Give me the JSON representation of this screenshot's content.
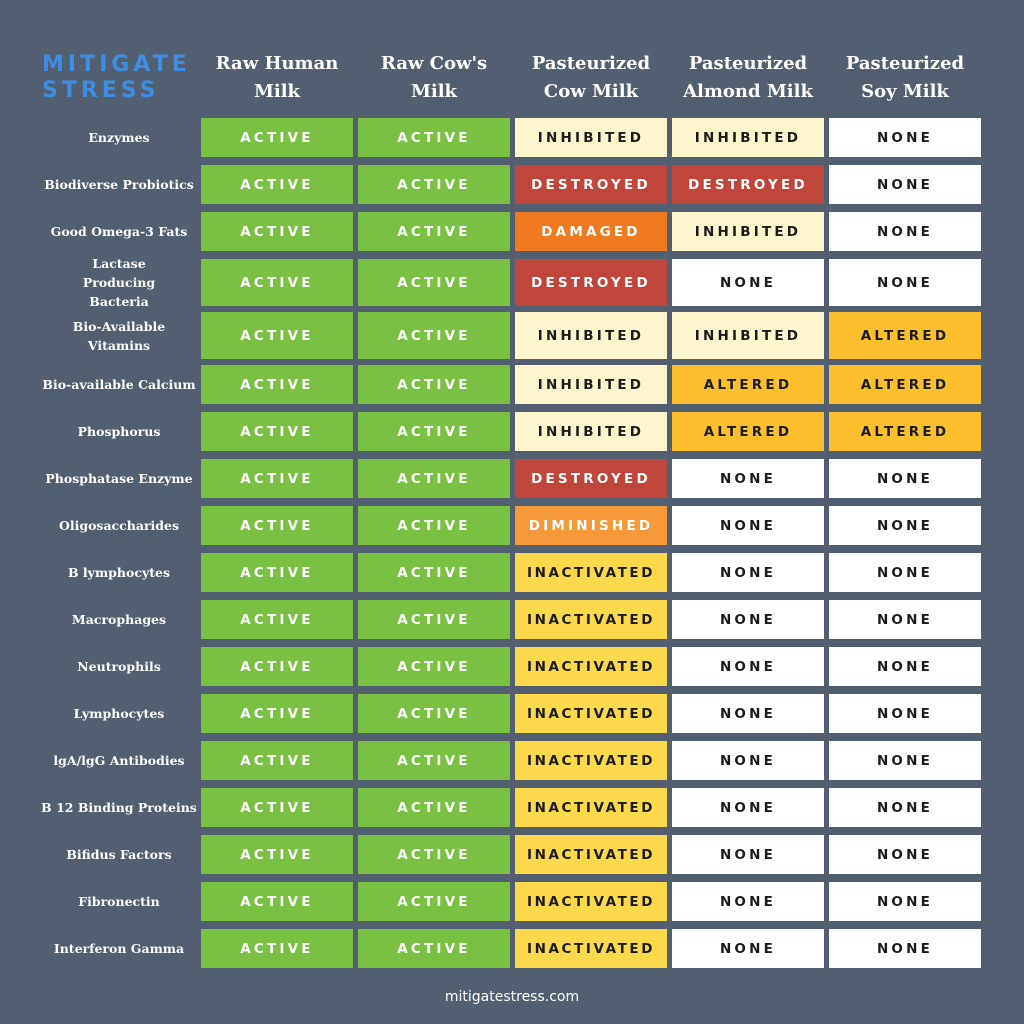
{
  "logo": {
    "line1": "MITIGATE",
    "line2": "STRESS"
  },
  "footer": "mitigatestress.com",
  "colors": {
    "background": "#525f70",
    "ACTIVE": "#7ac143",
    "INHIBITED": "#fdf6cc",
    "NONE": "#ffffff",
    "DESTROYED": "#c0463b",
    "DAMAGED": "#ef7a1f",
    "ALTERED": "#fbbf2e",
    "DIMINISHED": "#f6993a",
    "INACTIVATED": "#fcd84b"
  },
  "chart_data": {
    "type": "table",
    "columns": [
      "Raw Human Milk",
      "Raw Cow's Milk",
      "Pasteurized Cow Milk",
      "Pasteurized Almond Milk",
      "Pasteurized Soy Milk"
    ],
    "column_lines": [
      [
        "Raw Human",
        "Milk"
      ],
      [
        "Raw Cow's",
        "Milk"
      ],
      [
        "Pasteurized",
        "Cow Milk"
      ],
      [
        "Pasteurized",
        "Almond Milk"
      ],
      [
        "Pasteurized",
        "Soy Milk"
      ]
    ],
    "rows": [
      {
        "label": "Enzymes",
        "values": [
          "ACTIVE",
          "ACTIVE",
          "INHIBITED",
          "INHIBITED",
          "NONE"
        ]
      },
      {
        "label": "Biodiverse Probiotics",
        "values": [
          "ACTIVE",
          "ACTIVE",
          "DESTROYED",
          "DESTROYED",
          "NONE"
        ]
      },
      {
        "label": "Good Omega-3 Fats",
        "values": [
          "ACTIVE",
          "ACTIVE",
          "DAMAGED",
          "INHIBITED",
          "NONE"
        ]
      },
      {
        "label": "Lactase Producing Bacteria",
        "values": [
          "ACTIVE",
          "ACTIVE",
          "DESTROYED",
          "NONE",
          "NONE"
        ]
      },
      {
        "label": "Bio-Available Vitamins",
        "values": [
          "ACTIVE",
          "ACTIVE",
          "INHIBITED",
          "INHIBITED",
          "ALTERED"
        ]
      },
      {
        "label": "Bio-available Calcium",
        "values": [
          "ACTIVE",
          "ACTIVE",
          "INHIBITED",
          "ALTERED",
          "ALTERED"
        ]
      },
      {
        "label": "Phosphorus",
        "values": [
          "ACTIVE",
          "ACTIVE",
          "INHIBITED",
          "ALTERED",
          "ALTERED"
        ]
      },
      {
        "label": "Phosphatase Enzyme",
        "values": [
          "ACTIVE",
          "ACTIVE",
          "DESTROYED",
          "NONE",
          "NONE"
        ]
      },
      {
        "label": "Oligosaccharides",
        "values": [
          "ACTIVE",
          "ACTIVE",
          "DIMINISHED",
          "NONE",
          "NONE"
        ]
      },
      {
        "label": "B lymphocytes",
        "values": [
          "ACTIVE",
          "ACTIVE",
          "INACTIVATED",
          "NONE",
          "NONE"
        ]
      },
      {
        "label": "Macrophages",
        "values": [
          "ACTIVE",
          "ACTIVE",
          "INACTIVATED",
          "NONE",
          "NONE"
        ]
      },
      {
        "label": "Neutrophils",
        "values": [
          "ACTIVE",
          "ACTIVE",
          "INACTIVATED",
          "NONE",
          "NONE"
        ]
      },
      {
        "label": "Lymphocytes",
        "values": [
          "ACTIVE",
          "ACTIVE",
          "INACTIVATED",
          "NONE",
          "NONE"
        ]
      },
      {
        "label": "lgA/lgG Antibodies",
        "values": [
          "ACTIVE",
          "ACTIVE",
          "INACTIVATED",
          "NONE",
          "NONE"
        ]
      },
      {
        "label": "B 12 Binding Proteins",
        "values": [
          "ACTIVE",
          "ACTIVE",
          "INACTIVATED",
          "NONE",
          "NONE"
        ]
      },
      {
        "label": "Bifidus Factors",
        "values": [
          "ACTIVE",
          "ACTIVE",
          "INACTIVATED",
          "NONE",
          "NONE"
        ]
      },
      {
        "label": "Fibronectin",
        "values": [
          "ACTIVE",
          "ACTIVE",
          "INACTIVATED",
          "NONE",
          "NONE"
        ]
      },
      {
        "label": "Interferon Gamma",
        "values": [
          "ACTIVE",
          "ACTIVE",
          "INACTIVATED",
          "NONE",
          "NONE"
        ]
      }
    ]
  }
}
